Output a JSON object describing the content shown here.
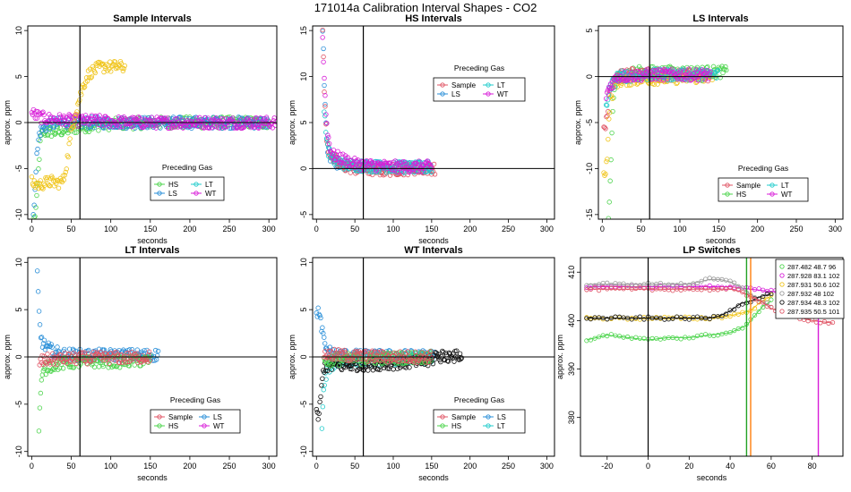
{
  "figure_title": "171014a   Calibration Interval Shapes - CO2",
  "chart_data": [
    {
      "type": "scatter",
      "title": "Sample Intervals",
      "xlabel": "seconds",
      "ylabel": "approx. ppm",
      "xlim": [
        -5,
        310
      ],
      "ylim": [
        -10.5,
        10.5
      ],
      "xticks": [
        0,
        50,
        100,
        150,
        200,
        250,
        300
      ],
      "yticks": [
        -10,
        -5,
        0,
        5,
        10
      ],
      "ref_x": 61,
      "ref_y": 0,
      "legend_title": "Preceding Gas",
      "legend_entries": [
        "HS",
        "LT",
        "LS",
        "WT"
      ],
      "legend_colors": [
        "#4dd44d",
        "#22cccc",
        "#2a8fd8",
        "#d81ed8"
      ],
      "series": [
        {
          "name": "HS",
          "color": "#4dd44d",
          "x": [
            3,
            6,
            8,
            10,
            12,
            15,
            20,
            30,
            45,
            60,
            90,
            120,
            150,
            200,
            250,
            300
          ],
          "y": [
            -10.5,
            -9,
            -6,
            -3,
            -1.5,
            -1,
            -1,
            -1,
            -0.8,
            -0.5,
            -0.2,
            -0.1,
            0,
            0,
            0,
            0
          ]
        },
        {
          "name": "LS",
          "color": "#2a8fd8",
          "x": [
            2,
            4,
            6,
            10,
            20,
            40,
            60,
            90,
            120,
            160,
            200,
            260,
            300
          ],
          "y": [
            -10.5,
            -7,
            -4,
            -1,
            -0.2,
            0,
            0,
            0,
            0,
            0,
            0,
            0,
            0
          ]
        },
        {
          "name": "WT",
          "color": "#d81ed8",
          "x": [
            0,
            10,
            20,
            40,
            60,
            80,
            100,
            140,
            180,
            220,
            260,
            300,
            310
          ],
          "y": [
            1,
            0.6,
            0.4,
            0.3,
            0.2,
            0.2,
            0.1,
            0,
            0,
            0,
            0,
            0,
            0
          ]
        },
        {
          "name": "Preceding Sample (yellow)",
          "color": "#f0c419",
          "x": [
            0,
            5,
            10,
            15,
            20,
            25,
            30,
            35,
            40,
            45,
            50,
            55,
            60,
            65,
            70,
            75,
            80,
            85,
            90,
            95,
            100,
            105,
            110,
            115,
            118
          ],
          "y": [
            -6.5,
            -6.7,
            -6.8,
            -6.6,
            -6.5,
            -6.4,
            -6.6,
            -6.5,
            -6.3,
            -4,
            -1,
            1,
            2.5,
            4,
            5,
            5.5,
            5.7,
            6,
            6,
            6.2,
            6,
            6.1,
            6.1,
            6,
            6
          ]
        }
      ]
    },
    {
      "type": "scatter",
      "title": "HS Intervals",
      "xlabel": "seconds",
      "ylabel": "approx. ppm",
      "xlim": [
        -5,
        310
      ],
      "ylim": [
        -5.5,
        15.5
      ],
      "xticks": [
        0,
        50,
        100,
        150,
        200,
        250,
        300
      ],
      "yticks": [
        -5,
        0,
        5,
        10,
        15
      ],
      "ref_x": 61,
      "ref_y": 0,
      "legend_title": "Preceding Gas",
      "legend_entries": [
        "Sample",
        "LT",
        "LS",
        "WT"
      ],
      "legend_colors": [
        "#e05565",
        "#22cccc",
        "#2a8fd8",
        "#d81ed8"
      ],
      "series": [
        {
          "name": "LS",
          "color": "#2a8fd8",
          "x": [
            8,
            9,
            10,
            11,
            12,
            13,
            14,
            16,
            18,
            20,
            25,
            30,
            40,
            60,
            80,
            100,
            120,
            140,
            150
          ],
          "y": [
            15.5,
            13,
            10,
            7,
            5,
            3.5,
            2.5,
            1.8,
            1.3,
            1,
            0.7,
            0.5,
            0.4,
            0.3,
            0.2,
            0.2,
            0.2,
            0.2,
            0.2
          ]
        },
        {
          "name": "Sample",
          "color": "#e05565",
          "x": [
            8,
            10,
            12,
            14,
            16,
            20,
            30,
            50,
            80,
            110,
            140,
            155
          ],
          "y": [
            15,
            9,
            5,
            3,
            2,
            1.2,
            0.4,
            0,
            -0.2,
            -0.1,
            0,
            0
          ]
        },
        {
          "name": "LT",
          "color": "#22cccc",
          "x": [
            10,
            15,
            20,
            40,
            80,
            120,
            150
          ],
          "y": [
            6,
            2,
            1,
            0.4,
            0.2,
            0.1,
            0.1
          ]
        },
        {
          "name": "WT",
          "color": "#d81ed8",
          "x": [
            8,
            10,
            14,
            20,
            50,
            100,
            150
          ],
          "y": [
            14,
            10,
            4,
            1.5,
            0.5,
            0.2,
            0.2
          ]
        }
      ]
    },
    {
      "type": "scatter",
      "title": "LS Intervals",
      "xlabel": "seconds",
      "ylabel": "approx. ppm",
      "xlim": [
        -5,
        310
      ],
      "ylim": [
        -15.5,
        5.5
      ],
      "xticks": [
        0,
        50,
        100,
        150,
        200,
        250,
        300
      ],
      "yticks": [
        -15,
        -10,
        -5,
        0,
        5
      ],
      "ref_x": 61,
      "ref_y": 0,
      "legend_title": "Preceding Gas",
      "legend_entries": [
        "Sample",
        "LT",
        "HS",
        "WT"
      ],
      "legend_colors": [
        "#e05565",
        "#22cccc",
        "#4dd44d",
        "#d81ed8"
      ],
      "series": [
        {
          "name": "HS",
          "color": "#4dd44d",
          "x": [
            8,
            10,
            12,
            14,
            16,
            20,
            30,
            50,
            80,
            110,
            140,
            160
          ],
          "y": [
            -15.5,
            -12,
            -7,
            -3,
            -1,
            -0.2,
            0.3,
            0.5,
            0.5,
            0.5,
            0.5,
            0.5
          ]
        },
        {
          "name": "Sample",
          "color": "#e05565",
          "x": [
            2,
            4,
            6,
            8,
            10,
            15,
            20,
            40,
            80,
            120,
            140
          ],
          "y": [
            -5,
            -5.5,
            -4.5,
            -3,
            -1.5,
            -0.5,
            0,
            0.3,
            0.2,
            0.1,
            0.1
          ]
        },
        {
          "name": "Preceding Sample (yellow)",
          "color": "#f0c419",
          "x": [
            2,
            4,
            6,
            8,
            10,
            15,
            20,
            40,
            80,
            120,
            145
          ],
          "y": [
            -10,
            -10.5,
            -9,
            -6,
            -3,
            -1,
            -0.5,
            -0.3,
            -0.2,
            -0.1,
            0
          ]
        },
        {
          "name": "LT",
          "color": "#22cccc",
          "x": [
            5,
            8,
            12,
            20,
            60,
            120,
            150
          ],
          "y": [
            -3,
            -2,
            -1,
            0,
            0.2,
            0.2,
            0.2
          ]
        },
        {
          "name": "WT",
          "color": "#d81ed8",
          "x": [
            5,
            10,
            20,
            60,
            120,
            140
          ],
          "y": [
            -2,
            -1,
            0,
            0.2,
            0.2,
            0.2
          ]
        }
      ]
    },
    {
      "type": "scatter",
      "title": "LT Intervals",
      "xlabel": "seconds",
      "ylabel": "approx. ppm",
      "xlim": [
        -5,
        310
      ],
      "ylim": [
        -10.5,
        10.5
      ],
      "xticks": [
        0,
        50,
        100,
        150,
        200,
        250,
        300
      ],
      "yticks": [
        -10,
        -5,
        0,
        5,
        10
      ],
      "ref_x": 61,
      "ref_y": 0,
      "legend_title": "Preceding Gas",
      "legend_entries": [
        "Sample",
        "LS",
        "HS",
        "WT"
      ],
      "legend_colors": [
        "#e05565",
        "#2a8fd8",
        "#4dd44d",
        "#d81ed8"
      ],
      "series": [
        {
          "name": "LS",
          "color": "#2a8fd8",
          "x": [
            6,
            7,
            8,
            9,
            10,
            11,
            12,
            14,
            16,
            20,
            25,
            30,
            40,
            60,
            80,
            100,
            120,
            140,
            160
          ],
          "y": [
            10.5,
            9,
            7,
            5,
            3.5,
            2.5,
            2,
            1.5,
            1.2,
            1,
            0.7,
            0.5,
            0.3,
            0.2,
            0.2,
            0.2,
            0.2,
            0.2,
            0.2
          ]
        },
        {
          "name": "HS",
          "color": "#4dd44d",
          "x": [
            8,
            9,
            10,
            11,
            12,
            14,
            16,
            20,
            30,
            50,
            80,
            110,
            140,
            150
          ],
          "y": [
            -10.5,
            -8,
            -6,
            -4,
            -3,
            -2,
            -1.5,
            -1,
            -0.8,
            -0.6,
            -0.5,
            -0.5,
            -0.4,
            -0.4
          ]
        },
        {
          "name": "Sample",
          "color": "#e05565",
          "x": [
            10,
            20,
            40,
            80,
            120,
            150
          ],
          "y": [
            -0.5,
            -0.3,
            -0.2,
            -0.1,
            -0.1,
            0
          ]
        }
      ]
    },
    {
      "type": "scatter",
      "title": "WT Intervals",
      "xlabel": "seconds",
      "ylabel": "approx. ppm",
      "xlim": [
        -5,
        310
      ],
      "ylim": [
        -10.5,
        10.5
      ],
      "xticks": [
        0,
        50,
        100,
        150,
        200,
        250,
        300
      ],
      "yticks": [
        -10,
        -5,
        0,
        5,
        10
      ],
      "ref_x": 61,
      "ref_y": 0,
      "legend_title": "Preceding Gas",
      "legend_entries": [
        "Sample",
        "LS",
        "HS",
        "LT"
      ],
      "legend_colors": [
        "#e05565",
        "#2a8fd8",
        "#4dd44d",
        "#22cccc"
      ],
      "series": [
        {
          "name": "LS",
          "color": "#2a8fd8",
          "x": [
            0,
            2,
            4,
            6,
            8,
            10,
            12,
            15,
            20,
            30,
            60,
            100,
            140,
            155
          ],
          "y": [
            4.5,
            5,
            4,
            3.5,
            2.5,
            1.5,
            1,
            0.6,
            0.4,
            0.2,
            0.1,
            0.1,
            0.1,
            0.1
          ]
        },
        {
          "name": "LT",
          "color": "#22cccc",
          "x": [
            6,
            7,
            8,
            9,
            10,
            12,
            15,
            20,
            30,
            60,
            100,
            140,
            150
          ],
          "y": [
            -10.5,
            -8,
            -6,
            -4,
            -3,
            -2,
            -1.2,
            -0.8,
            -0.5,
            -0.3,
            -0.2,
            -0.2,
            -0.1
          ]
        },
        {
          "name": "Preceding WT (black)",
          "color": "#111111",
          "x": [
            0,
            2,
            4,
            6,
            8,
            10,
            150,
            155,
            160,
            165,
            170,
            175,
            180,
            185,
            190
          ],
          "y": [
            -6,
            -6.5,
            -5.5,
            -4,
            -2,
            -1,
            -0.5,
            0.3,
            -0.2,
            0.4,
            -0.3,
            0.5,
            0,
            0.2,
            0
          ]
        },
        {
          "name": "HS",
          "color": "#4dd44d",
          "x": [
            10,
            20,
            50,
            100,
            150
          ],
          "y": [
            -0.5,
            -0.3,
            -0.2,
            -0.1,
            0
          ]
        },
        {
          "name": "Sample",
          "color": "#e05565",
          "x": [
            10,
            20,
            50,
            100,
            150
          ],
          "y": [
            0.3,
            0.2,
            0.1,
            0,
            0
          ]
        }
      ]
    },
    {
      "type": "line",
      "title": "LP Switches",
      "xlabel": "seconds",
      "ylabel": "approx. ppm",
      "xlim": [
        -33,
        95
      ],
      "ylim": [
        372,
        413
      ],
      "xticks": [
        -20,
        0,
        20,
        40,
        60,
        80
      ],
      "yticks": [
        380,
        390,
        400,
        410
      ],
      "ytick_labels": [
        "380",
        "390",
        "400",
        "410"
      ],
      "ref_x": 0,
      "vlines": [
        {
          "x": 48,
          "color": "#22a022",
          "note": "switch marker"
        },
        {
          "x": 50,
          "color": "#ff7f0e",
          "note": "switch marker"
        },
        {
          "x": 83,
          "color": "#d81ed8",
          "note": "switch marker"
        }
      ],
      "legend_entries": [
        "287.482 48.7 96",
        "287.928 83.1 102",
        "287.931 50.6 102",
        "287.932 48 102",
        "287.934 48.3 102",
        "287.935 50.5 101"
      ],
      "legend_colors": [
        "#4dd44d",
        "#d81ed8",
        "#f0c419",
        "#9a9a9a",
        "#111111",
        "#e05565"
      ],
      "series": [
        {
          "name": "287.482 48.7 96",
          "color": "#4dd44d",
          "x": [
            -30,
            -20,
            -10,
            0,
            10,
            20,
            30,
            40,
            48,
            52,
            56,
            60
          ],
          "y": [
            396,
            397,
            396.5,
            396,
            396.5,
            396.5,
            397,
            397.5,
            399,
            401,
            403,
            404
          ]
        },
        {
          "name": "287.928 83.1 102",
          "color": "#d81ed8",
          "x": [
            -30,
            -20,
            -10,
            0,
            10,
            20,
            30,
            40,
            50,
            60,
            70,
            80,
            83
          ],
          "y": [
            407,
            407,
            407,
            407,
            407,
            407,
            407,
            407,
            406.5,
            406,
            406,
            405.5,
            405.5
          ]
        },
        {
          "name": "287.931 50.6 102",
          "color": "#f0c419",
          "x": [
            -30,
            -20,
            -10,
            0,
            10,
            20,
            30,
            40,
            50,
            55,
            60
          ],
          "y": [
            400.5,
            400.5,
            400.5,
            400.5,
            400.5,
            400.5,
            400.5,
            401,
            402,
            404,
            405
          ]
        },
        {
          "name": "287.932 48 102",
          "color": "#9a9a9a",
          "x": [
            -30,
            -20,
            -10,
            0,
            10,
            20,
            25,
            30,
            35,
            40,
            45,
            48,
            55,
            60
          ],
          "y": [
            407.5,
            407.5,
            407.5,
            407.5,
            407.5,
            407.5,
            408,
            408.5,
            408.5,
            408,
            407,
            406,
            404,
            403
          ]
        },
        {
          "name": "287.934 48.3 102",
          "color": "#111111",
          "x": [
            -30,
            -20,
            -10,
            0,
            10,
            20,
            30,
            35,
            40,
            45,
            50,
            55,
            60
          ],
          "y": [
            400.5,
            400.5,
            400.5,
            400.5,
            400.5,
            400.5,
            400.5,
            401,
            402,
            403.5,
            404,
            405,
            405.5
          ]
        },
        {
          "name": "287.935 50.5 101",
          "color": "#e05565",
          "x": [
            -30,
            -20,
            -10,
            0,
            10,
            20,
            30,
            40,
            45,
            50,
            55,
            60,
            70,
            80,
            90
          ],
          "y": [
            406.5,
            406.5,
            406.5,
            406.5,
            406.5,
            406.5,
            406.5,
            406.5,
            406,
            405,
            404,
            402.5,
            401,
            400,
            399.5
          ]
        }
      ]
    }
  ]
}
